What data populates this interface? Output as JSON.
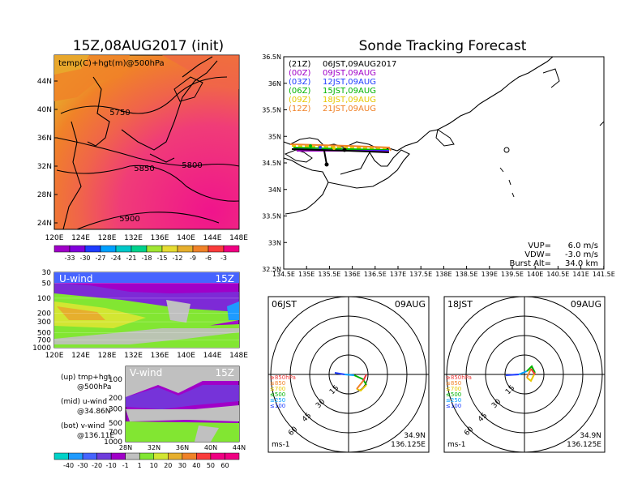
{
  "left_panel": {
    "title": "15Z,08AUG2017 (init)",
    "map_label": "temp(C)+hgt(m)@500hPa",
    "lat_ticks": [
      "44N",
      "40N",
      "36N",
      "32N",
      "28N",
      "24N"
    ],
    "lon_ticks": [
      "120E",
      "124E",
      "128E",
      "132E",
      "136E",
      "140E",
      "144E",
      "148E"
    ],
    "contour_labels": [
      "5750",
      "5800",
      "5850",
      "5900"
    ],
    "temp_colorbar": [
      "-33",
      "-30",
      "-27",
      "-24",
      "-21",
      "-18",
      "-15",
      "-12",
      "-9",
      "-6",
      "-3"
    ],
    "temp_colors": [
      "#a000c8",
      "#8200dc",
      "#1e3cff",
      "#00a0ff",
      "#00c8c8",
      "#00d28c",
      "#a0e632",
      "#e6dc32",
      "#e6af2d",
      "#f08228",
      "#fa3c3c",
      "#f00082"
    ]
  },
  "u_wind": {
    "label": "U-wind",
    "time": "15Z",
    "p_ticks": [
      "30",
      "50",
      "100",
      "200",
      "300",
      "500",
      "700",
      "1000"
    ],
    "lon_ticks": [
      "120E",
      "124E",
      "128E",
      "132E",
      "136E",
      "140E",
      "144E",
      "148E"
    ]
  },
  "v_wind": {
    "label": "V-wind",
    "time": "15Z",
    "p_ticks": [
      "100",
      "200",
      "300",
      "500",
      "700",
      "1000"
    ],
    "lat_ticks": [
      "28N",
      "32N",
      "36N",
      "40N",
      "44N"
    ]
  },
  "legend_notes": [
    {
      "a": "(up) tmp+hgt",
      "b": "@500hPa"
    },
    {
      "a": "(mid) u-wind",
      "b": "@34.86N"
    },
    {
      "a": "(bot) v-wind",
      "b": "@136.11E"
    }
  ],
  "wind_colorbar": [
    "-40",
    "-30",
    "-20",
    "-10",
    "-1",
    "1",
    "10",
    "20",
    "30",
    "40",
    "50",
    "60"
  ],
  "wind_colors": [
    "#00d2c8",
    "#1e9bff",
    "#4664ff",
    "#6e3cdc",
    "#a000c8",
    "#c0c0c0",
    "#82e632",
    "#d2e632",
    "#e6af2d",
    "#f08228",
    "#fa3c3c",
    "#f00082"
  ],
  "right_panel": {
    "title": "Sonde Tracking Forecast",
    "lat_ticks": [
      "36.5N",
      "36N",
      "35.5N",
      "35N",
      "34.5N",
      "34N",
      "33.5N",
      "33N",
      "32.5N"
    ],
    "lon_ticks": [
      "134.5E",
      "135E",
      "135.5E",
      "136E",
      "136.5E",
      "137E",
      "137.5E",
      "138E",
      "138.5E",
      "139E",
      "139.5E",
      "140E",
      "140.5E",
      "141E",
      "141.5E"
    ],
    "legend": [
      {
        "code": "(21Z)",
        "time": "06JST,09AUG2017",
        "color": "#000000"
      },
      {
        "code": "(00Z)",
        "time": "09JST,09AUG",
        "color": "#a000c8"
      },
      {
        "code": "(03Z)",
        "time": "12JST,09AUG",
        "color": "#1e3cff"
      },
      {
        "code": "(06Z)",
        "time": "15JST,09AUG",
        "color": "#00b400"
      },
      {
        "code": "(09Z)",
        "time": "18JST,09AUG",
        "color": "#e6c800"
      },
      {
        "code": "(12Z)",
        "time": "21JST,09AUG",
        "color": "#f08228"
      }
    ],
    "params": [
      {
        "k": "VUP=",
        "v": "6.0 m/s"
      },
      {
        "k": "VDW=",
        "v": "-3.0 m/s"
      },
      {
        "k": "Burst Alt=",
        "v": "34.0 km"
      }
    ]
  },
  "polar": [
    {
      "time": "06JST",
      "date": "09AUG",
      "lat": "34.9N",
      "lon": "136.125E",
      "unit": "ms-1",
      "rings": [
        "15",
        "30",
        "45",
        "60"
      ],
      "levels": [
        "≥850hPa",
        "≤850",
        "≤700",
        "≤500",
        "≤250",
        "≤100"
      ]
    },
    {
      "time": "18JST",
      "date": "09AUG",
      "lat": "34.9N",
      "lon": "136.125E",
      "unit": "ms-1",
      "rings": [
        "15",
        "30",
        "45",
        "60"
      ],
      "levels": [
        "≥850hPa",
        "≤850",
        "≤700",
        "≤500",
        "≤250",
        "≤100"
      ]
    }
  ],
  "level_colors": [
    "#f03c3c",
    "#f08228",
    "#e6c800",
    "#00b400",
    "#00a0ff",
    "#1e3cff"
  ]
}
